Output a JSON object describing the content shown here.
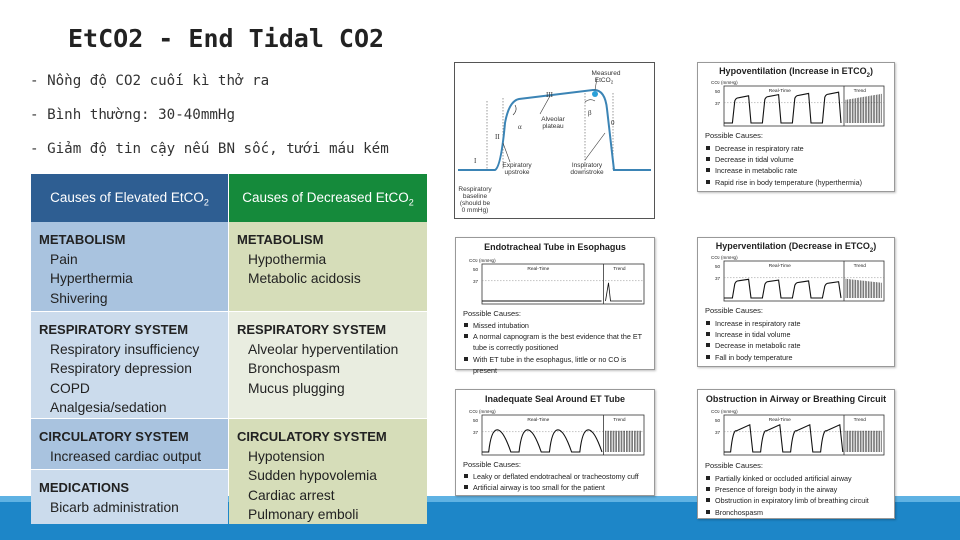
{
  "title": "EtCO2 - End Tidal CO2",
  "bullets": [
    "- Nồng độ CO2 cuối kì thở ra",
    "- Bình thường: 30-40mmHg",
    "- Giảm độ tin cậy nếu BN sốc, tưới máu kém"
  ],
  "causes": {
    "elevated_header": "Causes of Elevated EtCO",
    "decreased_header": "Causes of Decreased EtCO",
    "sub2": "2",
    "elevated": [
      {
        "category": "METABOLISM",
        "items": [
          "Pain",
          "Hyperthermia",
          "Shivering"
        ]
      },
      {
        "category": "RESPIRATORY SYSTEM",
        "items": [
          "Respiratory insufficiency",
          "Respiratory depression",
          "COPD",
          "Analgesia/sedation"
        ]
      },
      {
        "category": "CIRCULATORY SYSTEM",
        "items": [
          "Increased cardiac output"
        ]
      },
      {
        "category": "MEDICATIONS",
        "items": [
          "Bicarb administration"
        ]
      }
    ],
    "decreased": [
      {
        "category": "METABOLISM",
        "items": [
          "Hypothermia",
          "Metabolic acidosis"
        ]
      },
      {
        "category": "RESPIRATORY SYSTEM",
        "items": [
          "Alveolar hyperventilation",
          "Bronchospasm",
          "Mucus plugging"
        ]
      },
      {
        "category": "CIRCULATORY SYSTEM",
        "items": [
          "Hypotension",
          "Sudden hypovolemia",
          "Cardiac arrest",
          "Pulmonary emboli"
        ]
      }
    ]
  },
  "capnogram": {
    "measured": "Measured",
    "etco2": "EtCO",
    "two": "2",
    "phase_1": "I",
    "phase_2": "II",
    "phase_3": "III",
    "phase_0": "0",
    "alpha": "α",
    "beta": "β",
    "alveolar": "Alveolar",
    "plateau": "plateau",
    "expiratory": "Expiratory",
    "upstroke": "upstroke",
    "inspiratory": "Inspiratory",
    "downstroke": "downstroke",
    "baseline_lines": [
      "Respiratory",
      "baseline",
      "(should be",
      "0 mmHg)"
    ]
  },
  "wave_labels": {
    "co2": "CO",
    "co2_unit": "(mmHg)",
    "two": "2",
    "y50": "50",
    "y37": "37",
    "realtime": "Real-Time",
    "trend": "Trend"
  },
  "possible_causes": "Possible Causes:",
  "panels": {
    "hypovent": {
      "title": "Hypoventilation (Increase in ETCO",
      "title_end": ")",
      "items": [
        "Decrease in respiratory rate",
        "Decrease in tidal volume",
        "Increase in metabolic rate",
        "Rapid rise in body temperature (hyperthermia)"
      ]
    },
    "esophagus": {
      "title": "Endotracheal Tube in Esophagus",
      "items": [
        "Missed intubation",
        "A normal capnogram is the best evidence that the ET tube is correctly positioned",
        "With ET tube in the esophagus, little or no CO is present"
      ]
    },
    "hypervent": {
      "title": "Hyperventilation (Decrease in ETCO",
      "title_end": ")",
      "items": [
        "Increase in respiratory rate",
        "Increase in tidal volume",
        "Decrease in metabolic rate",
        "Fall in body temperature"
      ]
    },
    "seal": {
      "title": "Inadequate Seal Around ET Tube",
      "items": [
        "Leaky or deflated endotracheal or tracheostomy cuff",
        "Artificial airway is too small for the patient"
      ]
    },
    "obstruction": {
      "title": "Obstruction in Airway or Breathing Circuit",
      "items": [
        "Partially kinked or occluded artificial airway",
        "Presence of foreign body in the airway",
        "Obstruction in expiratory limb of breathing circuit",
        "Bronchospasm"
      ]
    }
  }
}
